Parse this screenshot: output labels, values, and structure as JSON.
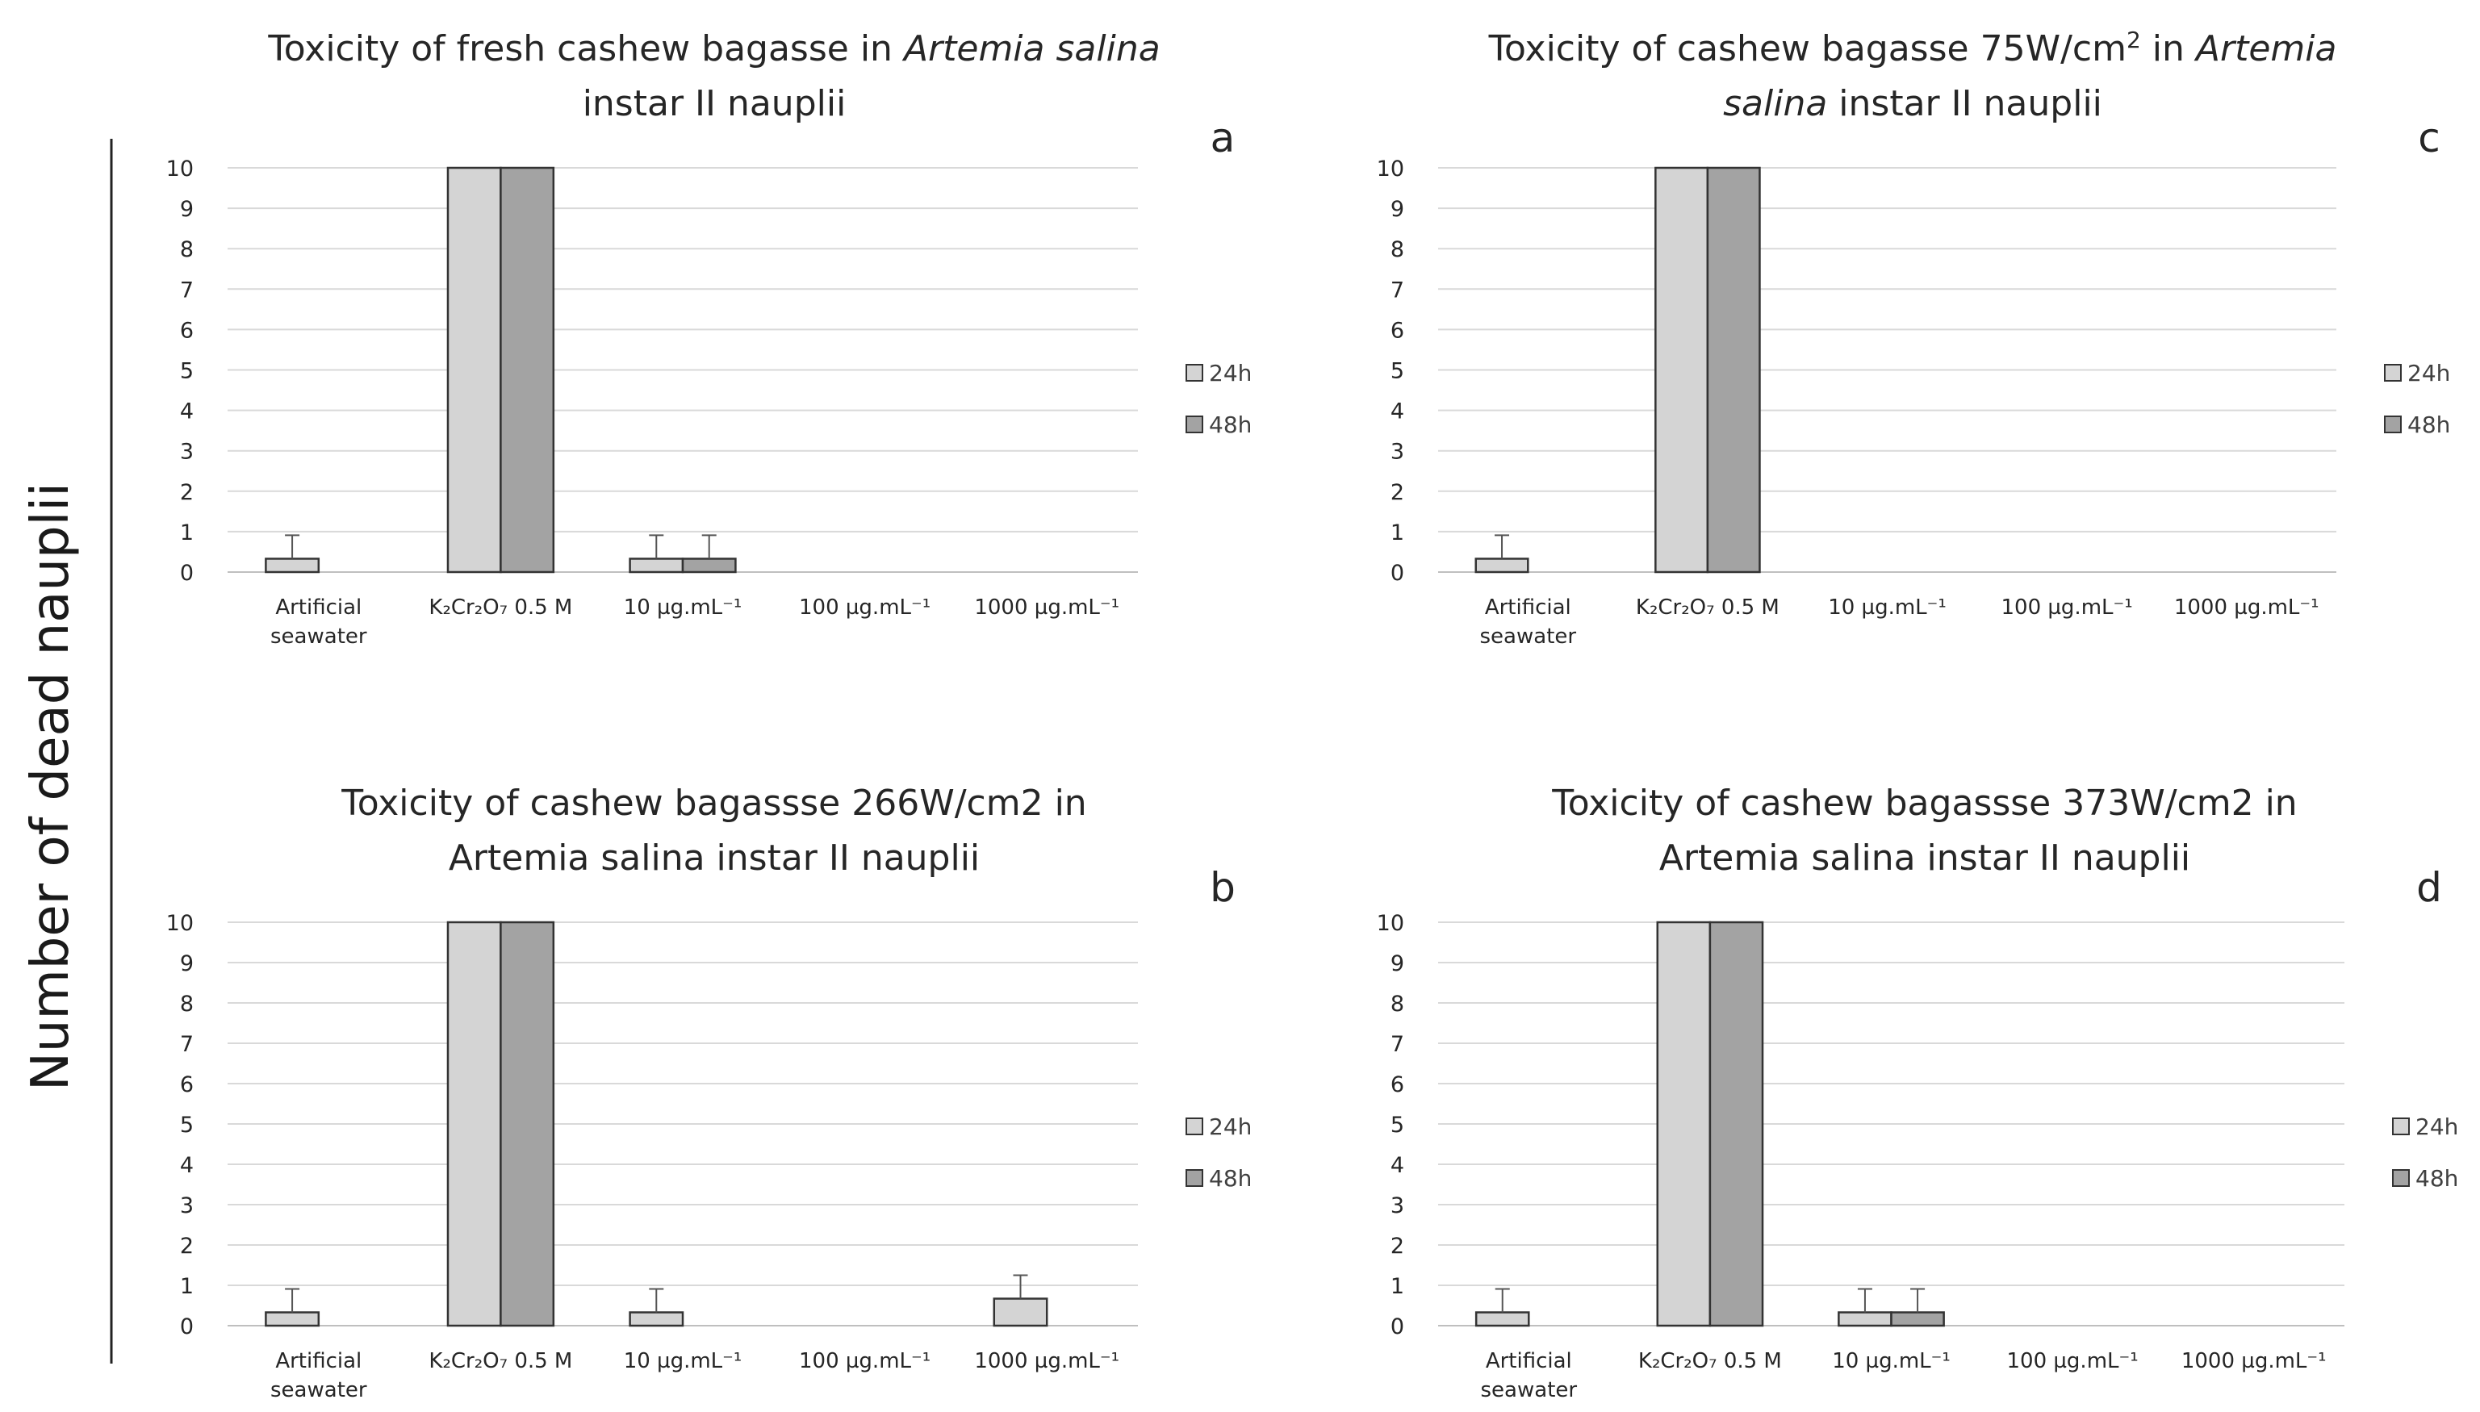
{
  "figure": {
    "ylabel": "Number of dead nauplii"
  },
  "chart_data": [
    {
      "type": "bar",
      "panel": "a",
      "title_parts": [
        {
          "text": "Toxicity of fresh cashew bagasse in ",
          "italic": false
        },
        {
          "text": "Artemia salina",
          "italic": true
        },
        {
          "text": "\ninstar II nauplii",
          "italic": false
        }
      ],
      "categories": [
        {
          "main": "Artificial",
          "second": "seawater"
        },
        {
          "main": "K₂Cr₂O₇ 0.5 M"
        },
        {
          "main": "10 µg.mL⁻¹"
        },
        {
          "main": "100 µg.mL⁻¹"
        },
        {
          "main": "1000 µg.mL⁻¹"
        }
      ],
      "series": [
        {
          "name": "24h",
          "color": "#d4d4d4",
          "values": [
            0.33,
            10,
            0.33,
            0,
            0
          ],
          "errors": [
            0.58,
            0,
            0.58,
            0,
            0
          ]
        },
        {
          "name": "48h",
          "color": "#a3a3a3",
          "values": [
            null,
            10,
            0.33,
            0,
            0
          ],
          "errors": [
            null,
            0,
            0.58,
            0,
            0
          ]
        }
      ],
      "yticks": [
        "0",
        "1",
        "2",
        "3",
        "4",
        "5",
        "6",
        "7",
        "8",
        "9",
        "10"
      ],
      "ylim": [
        0,
        10
      ],
      "legend": [
        "24h",
        "48h"
      ]
    },
    {
      "type": "bar",
      "panel": "c",
      "title_parts": [
        {
          "text": "Toxicity of cashew bagasse 75W/cm",
          "italic": false
        },
        {
          "text": "2",
          "italic": false,
          "sup": true
        },
        {
          "text": " in ",
          "italic": false
        },
        {
          "text": "Artemia",
          "italic": true
        },
        {
          "text": "\n",
          "italic": false
        },
        {
          "text": "salina",
          "italic": true
        },
        {
          "text": " instar II nauplii",
          "italic": false
        }
      ],
      "categories": [
        {
          "main": "Artificial",
          "second": "seawater"
        },
        {
          "main": "K₂Cr₂O₇ 0.5 M"
        },
        {
          "main": "10 µg.mL⁻¹"
        },
        {
          "main": "100 µg.mL⁻¹"
        },
        {
          "main": "1000 µg.mL⁻¹"
        }
      ],
      "series": [
        {
          "name": "24h",
          "color": "#d4d4d4",
          "values": [
            0.33,
            10,
            0,
            0,
            0
          ],
          "errors": [
            0.58,
            0,
            0,
            0,
            0
          ]
        },
        {
          "name": "48h",
          "color": "#a3a3a3",
          "values": [
            null,
            10,
            0,
            0,
            0
          ],
          "errors": [
            null,
            0,
            0,
            0,
            0
          ]
        }
      ],
      "yticks": [
        "0",
        "1",
        "2",
        "3",
        "4",
        "5",
        "6",
        "7",
        "8",
        "9",
        "10"
      ],
      "ylim": [
        0,
        10
      ],
      "legend": [
        "24h",
        "48h"
      ]
    },
    {
      "type": "bar",
      "panel": "b",
      "title_parts": [
        {
          "text": "Toxicity of cashew bagassse 266W/cm2 in",
          "italic": false
        },
        {
          "text": "\nArtemia salina instar II nauplii",
          "italic": false
        }
      ],
      "categories": [
        {
          "main": "Artificial",
          "second": "seawater"
        },
        {
          "main": "K₂Cr₂O₇ 0.5 M"
        },
        {
          "main": "10 µg.mL⁻¹"
        },
        {
          "main": "100 µg.mL⁻¹"
        },
        {
          "main": "1000 µg.mL⁻¹"
        }
      ],
      "series": [
        {
          "name": "24h",
          "color": "#d4d4d4",
          "values": [
            0.33,
            10,
            0.33,
            0,
            0.67
          ],
          "errors": [
            0.58,
            0,
            0.58,
            0,
            0.58
          ]
        },
        {
          "name": "48h",
          "color": "#a3a3a3",
          "values": [
            null,
            10,
            null,
            0,
            null
          ],
          "errors": [
            null,
            0,
            null,
            0,
            null
          ]
        }
      ],
      "yticks": [
        "0",
        "1",
        "2",
        "3",
        "4",
        "5",
        "6",
        "7",
        "8",
        "9",
        "10"
      ],
      "ylim": [
        0,
        10
      ],
      "legend": [
        "24h",
        "48h"
      ]
    },
    {
      "type": "bar",
      "panel": "d",
      "title_parts": [
        {
          "text": "Toxicity of cashew bagassse 373W/cm2 in",
          "italic": false
        },
        {
          "text": "\nArtemia salina instar II nauplii",
          "italic": false
        }
      ],
      "categories": [
        {
          "main": "Artificial",
          "second": "seawater"
        },
        {
          "main": "K₂Cr₂O₇ 0.5 M"
        },
        {
          "main": "10 µg.mL⁻¹"
        },
        {
          "main": "100 µg.mL⁻¹"
        },
        {
          "main": "1000 µg.mL⁻¹"
        }
      ],
      "series": [
        {
          "name": "24h",
          "color": "#d4d4d4",
          "values": [
            0.33,
            10,
            0.33,
            0,
            0
          ],
          "errors": [
            0.58,
            0,
            0.58,
            0,
            0
          ]
        },
        {
          "name": "48h",
          "color": "#a3a3a3",
          "values": [
            null,
            10,
            0.33,
            0,
            0
          ],
          "errors": [
            null,
            0,
            0.58,
            0,
            0
          ]
        }
      ],
      "yticks": [
        "0",
        "1",
        "2",
        "3",
        "4",
        "5",
        "6",
        "7",
        "8",
        "9",
        "10"
      ],
      "ylim": [
        0,
        10
      ],
      "legend": [
        "24h",
        "48h"
      ]
    }
  ]
}
